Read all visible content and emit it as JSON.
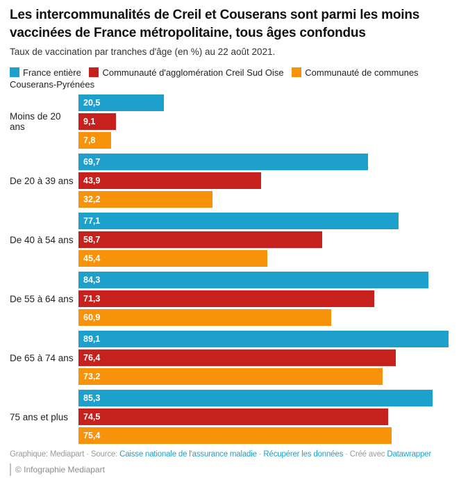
{
  "header": {
    "title": "Les intercommunalités de Creil et Couserans sont parmi les moins vaccinées de France métropolitaine, tous âges confondus",
    "subtitle": "Taux de vaccination par tranches d'âge (en %) au 22 août 2021."
  },
  "chart_data": {
    "type": "bar",
    "orientation": "horizontal",
    "unit": "%",
    "title": "Les intercommunalités de Creil et Couserans sont parmi les moins vaccinées de France métropolitaine, tous âges confondus",
    "subtitle": "Taux de vaccination par tranches d'âge (en %) au 22 août 2021.",
    "categories": [
      "Moins de 20 ans",
      "De 20 à 39 ans",
      "De 40 à 54 ans",
      "De 55 à 64 ans",
      "De 65 à 74 ans",
      "75 ans et plus"
    ],
    "series": [
      {
        "name": "France entière",
        "color": "#1EA0CD",
        "values": [
          20.5,
          69.7,
          77.1,
          84.3,
          89.1,
          85.3
        ]
      },
      {
        "name": "Communauté d'agglomération Creil Sud Oise",
        "color": "#C6211D",
        "values": [
          9.1,
          43.9,
          58.7,
          71.3,
          76.4,
          74.5
        ]
      },
      {
        "name": "Communauté de communes Couserans-Pyrénées",
        "color": "#F7920A",
        "values": [
          7.8,
          32.2,
          45.4,
          60.9,
          73.2,
          75.4
        ]
      }
    ],
    "value_labels": "inside-start, white, comma decimal separator",
    "xlim": [
      0,
      93.8
    ],
    "grid": false,
    "legend_position": "top"
  },
  "footer": {
    "credit_prefix": "Graphique: Mediapart · Source: ",
    "source_link": "Caisse nationale de l'assurance maladie",
    "separator": " · ",
    "data_link": "Récupérer les données",
    "created_with": " · Créé avec ",
    "tool_link": "Datawrapper",
    "copyright": "© Infographie Mediapart"
  },
  "colors": {
    "series_blue": "#1EA0CD",
    "series_red": "#C6211D",
    "series_orange": "#F7920A",
    "link": "#1EA0CD",
    "footer_text": "#9a9a9a"
  }
}
